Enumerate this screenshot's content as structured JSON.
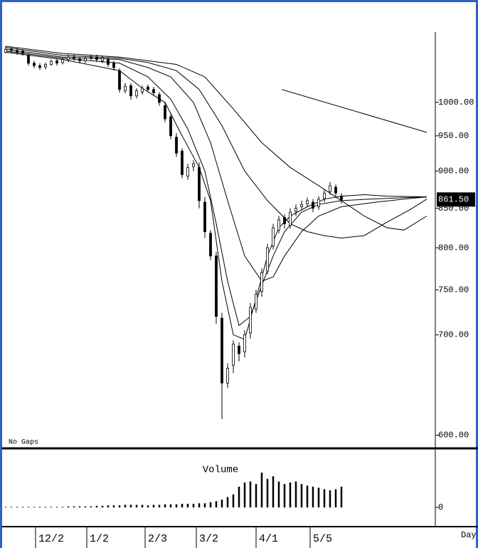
{
  "chart_data": [
    {
      "type": "candlestick",
      "note_text": "No Gaps",
      "xlim": [
        0,
        151
      ],
      "ylim": [
        588,
        1160
      ],
      "log_scale": true,
      "yticks": [
        {
          "value": 1000,
          "label": "1000.00"
        },
        {
          "value": 950,
          "label": "950.00"
        },
        {
          "value": 900,
          "label": "900.00"
        },
        {
          "value": 850,
          "label": "850.00"
        },
        {
          "value": 800,
          "label": "800.00"
        },
        {
          "value": 750,
          "label": "750.00"
        },
        {
          "value": 700,
          "label": "700.00"
        },
        {
          "value": 600,
          "label": "600.00"
        }
      ],
      "last_label": "861.50",
      "x": [
        0,
        2,
        4,
        6,
        8,
        10,
        12,
        14,
        16,
        18,
        20,
        22,
        24,
        26,
        28,
        30,
        32,
        34,
        36,
        38,
        40,
        42,
        44,
        46,
        48,
        50,
        52,
        54,
        56,
        58,
        60,
        62,
        64,
        66,
        68,
        70,
        72,
        74,
        76,
        78,
        80,
        82,
        84,
        86,
        88,
        90,
        92,
        94,
        96,
        98,
        100,
        102,
        104,
        106,
        108,
        110,
        112,
        114,
        116,
        118
      ],
      "open": [
        1080,
        1085,
        1083,
        1082,
        1075,
        1062,
        1058,
        1056,
        1060,
        1066,
        1063,
        1068,
        1072,
        1069,
        1066,
        1071,
        1072,
        1066,
        1068,
        1062,
        1050,
        1018,
        1026,
        1010,
        1016,
        1024,
        1020,
        1012,
        995,
        978,
        948,
        928,
        893,
        906,
        905,
        858,
        818,
        790,
        718,
        650,
        668,
        688,
        682,
        702,
        728,
        748,
        772,
        802,
        822,
        838,
        828,
        846,
        852,
        856,
        858,
        852,
        863,
        872,
        878,
        866
      ],
      "high": [
        1090,
        1089,
        1087,
        1085,
        1078,
        1066,
        1062,
        1063,
        1068,
        1069,
        1071,
        1076,
        1076,
        1072,
        1074,
        1076,
        1076,
        1074,
        1072,
        1066,
        1054,
        1030,
        1030,
        1022,
        1026,
        1028,
        1024,
        1016,
        1000,
        982,
        954,
        932,
        910,
        915,
        912,
        865,
        822,
        795,
        724,
        670,
        694,
        692,
        705,
        735,
        750,
        775,
        805,
        830,
        840,
        842,
        850,
        855,
        860,
        864,
        862,
        866,
        875,
        885,
        882,
        870
      ],
      "low": [
        1078,
        1079,
        1076,
        1074,
        1058,
        1054,
        1051,
        1052,
        1058,
        1058,
        1060,
        1064,
        1066,
        1062,
        1062,
        1067,
        1064,
        1062,
        1056,
        1050,
        1015,
        1014,
        1004,
        1006,
        1012,
        1016,
        1010,
        995,
        970,
        945,
        920,
        890,
        888,
        900,
        850,
        812,
        785,
        712,
        615,
        645,
        660,
        672,
        676,
        696,
        724,
        742,
        768,
        798,
        818,
        824,
        824,
        840,
        848,
        852,
        845,
        848,
        858,
        868,
        864,
        856
      ],
      "close": [
        1085,
        1083,
        1080,
        1078,
        1062,
        1058,
        1055,
        1060,
        1065,
        1062,
        1068,
        1072,
        1070,
        1066,
        1070,
        1072,
        1068,
        1070,
        1060,
        1055,
        1020,
        1025,
        1010,
        1018,
        1022,
        1020,
        1015,
        1000,
        975,
        950,
        925,
        895,
        905,
        910,
        860,
        820,
        790,
        720,
        650,
        665,
        690,
        680,
        700,
        730,
        745,
        770,
        800,
        825,
        835,
        830,
        845,
        850,
        855,
        860,
        850,
        862,
        870,
        880,
        870,
        861.5
      ],
      "up_color": "#ffffff",
      "down_color": "#000000",
      "series": [
        {
          "color": "#000000",
          "x": [
            0,
            20,
            40,
            48,
            56,
            62,
            68,
            72,
            76,
            80,
            84,
            88,
            92,
            96,
            100,
            106,
            112,
            118,
            126,
            134,
            148
          ],
          "values": [
            1080,
            1068,
            1050,
            1022,
            1000,
            950,
            905,
            860,
            760,
            700,
            695,
            740,
            790,
            825,
            840,
            852,
            862,
            866,
            868,
            866,
            865
          ]
        },
        {
          "color": "#000000",
          "x": [
            0,
            20,
            40,
            50,
            58,
            64,
            70,
            74,
            78,
            82,
            86,
            90,
            94,
            98,
            104,
            110,
            118,
            128,
            140,
            148
          ],
          "values": [
            1082,
            1070,
            1062,
            1040,
            1005,
            960,
            900,
            830,
            760,
            710,
            720,
            755,
            790,
            820,
            845,
            855,
            860,
            862,
            864,
            865
          ]
        },
        {
          "color": "#000000",
          "x": [
            0,
            20,
            40,
            50,
            58,
            66,
            72,
            78,
            84,
            90,
            94,
            98,
            104,
            110,
            118,
            130,
            140,
            148
          ],
          "values": [
            1085,
            1072,
            1068,
            1055,
            1040,
            1000,
            940,
            860,
            790,
            760,
            765,
            790,
            820,
            840,
            852,
            858,
            862,
            865
          ]
        },
        {
          "color": "#000000",
          "x": [
            0,
            20,
            40,
            50,
            60,
            68,
            76,
            84,
            92,
            100,
            106,
            112,
            118,
            126,
            134,
            142,
            148
          ],
          "values": [
            1088,
            1075,
            1070,
            1063,
            1050,
            1020,
            965,
            900,
            860,
            830,
            820,
            815,
            812,
            815,
            832,
            848,
            862
          ]
        },
        {
          "color": "#000000",
          "x": [
            0,
            20,
            40,
            50,
            60,
            70,
            80,
            90,
            100,
            110,
            118,
            126,
            134,
            140,
            148
          ],
          "values": [
            1090,
            1078,
            1072,
            1066,
            1060,
            1040,
            990,
            940,
            905,
            880,
            860,
            840,
            825,
            822,
            840
          ]
        },
        {
          "color": "#000000",
          "x": [
            97,
            148
          ],
          "values": [
            1020,
            955
          ]
        }
      ]
    },
    {
      "type": "bar",
      "title": "Volume",
      "x_unit_label": "Day",
      "xlim": [
        0,
        151
      ],
      "xticks": [
        {
          "value": 10.5,
          "label": "12/2"
        },
        {
          "value": 28.5,
          "label": "1/2"
        },
        {
          "value": 49,
          "label": "2/3"
        },
        {
          "value": 67,
          "label": "3/2"
        },
        {
          "value": 88,
          "label": "4/1"
        },
        {
          "value": 107,
          "label": "5/5"
        }
      ],
      "ylim": [
        0,
        100
      ],
      "yticks": [
        0
      ],
      "color": "#000000",
      "x": [
        0,
        2,
        4,
        6,
        8,
        10,
        12,
        14,
        16,
        18,
        20,
        22,
        24,
        26,
        28,
        30,
        32,
        34,
        36,
        38,
        40,
        42,
        44,
        46,
        48,
        50,
        52,
        54,
        56,
        58,
        60,
        62,
        64,
        66,
        68,
        70,
        72,
        74,
        76,
        78,
        80,
        82,
        84,
        86,
        88,
        90,
        92,
        94,
        96,
        98,
        100,
        102,
        104,
        106,
        108,
        110,
        112,
        114,
        116,
        118
      ],
      "values": [
        1,
        1,
        1,
        1,
        1,
        1,
        1,
        1,
        1,
        1,
        1,
        2,
        2,
        2,
        2,
        2,
        3,
        3,
        4,
        4,
        4,
        5,
        5,
        5,
        5,
        4,
        5,
        5,
        6,
        6,
        6,
        7,
        7,
        7,
        8,
        8,
        10,
        12,
        15,
        20,
        25,
        40,
        48,
        50,
        45,
        67,
        55,
        60,
        50,
        45,
        48,
        50,
        45,
        42,
        40,
        38,
        35,
        33,
        35,
        40
      ]
    }
  ]
}
